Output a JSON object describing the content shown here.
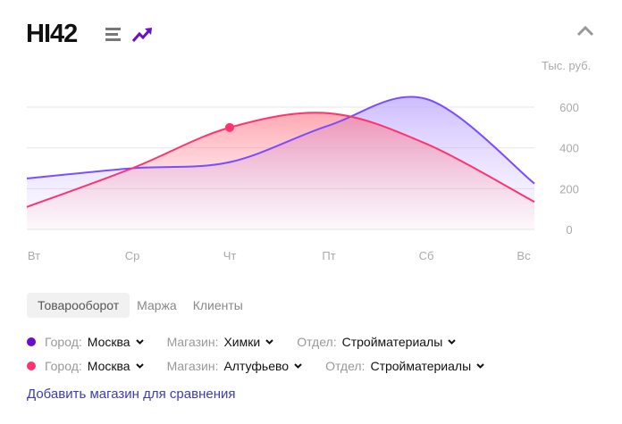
{
  "header": {
    "title": "HI42",
    "icons": [
      "menu-icon",
      "trend-icon",
      "chevron-up-icon"
    ],
    "unit": "Тыс. руб."
  },
  "tabs": [
    {
      "label": "Товарооборот",
      "active": true
    },
    {
      "label": "Маржа"
    },
    {
      "label": "Клиенты"
    }
  ],
  "filters": [
    {
      "color": "#6a0dcc",
      "city_label": "Город:",
      "city": "Москва",
      "store_label": "Магазин:",
      "store": "Химки",
      "dept_label": "Отдел:",
      "dept": "Стройматериалы"
    },
    {
      "color": "#ff3370",
      "city_label": "Город:",
      "city": "Москва",
      "store_label": "Магазин:",
      "store": "Алтуфьево",
      "dept_label": "Отдел:",
      "dept": "Стройматериалы"
    }
  ],
  "add_link": "Добавить магазин для сравнения",
  "chart_data": {
    "type": "area",
    "categories": [
      "Вт",
      "Ср",
      "Чт",
      "Пт",
      "Сб",
      "Вс"
    ],
    "ylabel": "Тыс. руб.",
    "yticks": [
      0,
      200,
      400,
      600
    ],
    "ylim": [
      0,
      650
    ],
    "grid": true,
    "series": [
      {
        "color": "#7b4dff",
        "values": [
          250,
          300,
          330,
          510,
          640,
          225
        ]
      },
      {
        "color": "#ff3370",
        "values": [
          110,
          300,
          500,
          570,
          420,
          135
        ],
        "highlight_index": 2
      }
    ]
  }
}
